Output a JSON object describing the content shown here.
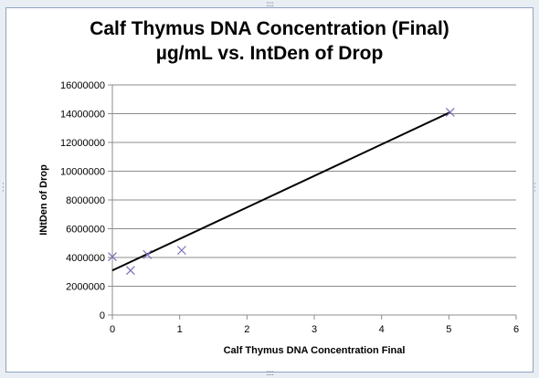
{
  "chart_data": {
    "type": "scatter",
    "title_line1": "Calf Thymus DNA Concentration (Final)",
    "title_line2": "µg/mL vs. IntDen of Drop",
    "xlabel": "Calf Thymus  DNA Concentration Final",
    "ylabel": "INtDen of Drop",
    "xlim": [
      0,
      6
    ],
    "ylim": [
      0,
      16000000
    ],
    "x_ticks": [
      0,
      1,
      2,
      3,
      4,
      5,
      6
    ],
    "y_ticks": [
      0,
      2000000,
      4000000,
      6000000,
      8000000,
      10000000,
      12000000,
      14000000,
      16000000
    ],
    "grid": "horizontal",
    "legend": "none",
    "series": [
      {
        "marker": "x",
        "color": "#7a6fb8",
        "points": [
          {
            "x": 0.0,
            "y": 4050000
          },
          {
            "x": 0.27,
            "y": 3100000
          },
          {
            "x": 0.52,
            "y": 4200000
          },
          {
            "x": 1.03,
            "y": 4500000
          },
          {
            "x": 5.02,
            "y": 14100000
          }
        ]
      }
    ],
    "trendline": {
      "type": "linear",
      "color": "#000000",
      "from": {
        "x": 0,
        "y": 3100000
      },
      "to": {
        "x": 5.02,
        "y": 14100000
      }
    }
  }
}
